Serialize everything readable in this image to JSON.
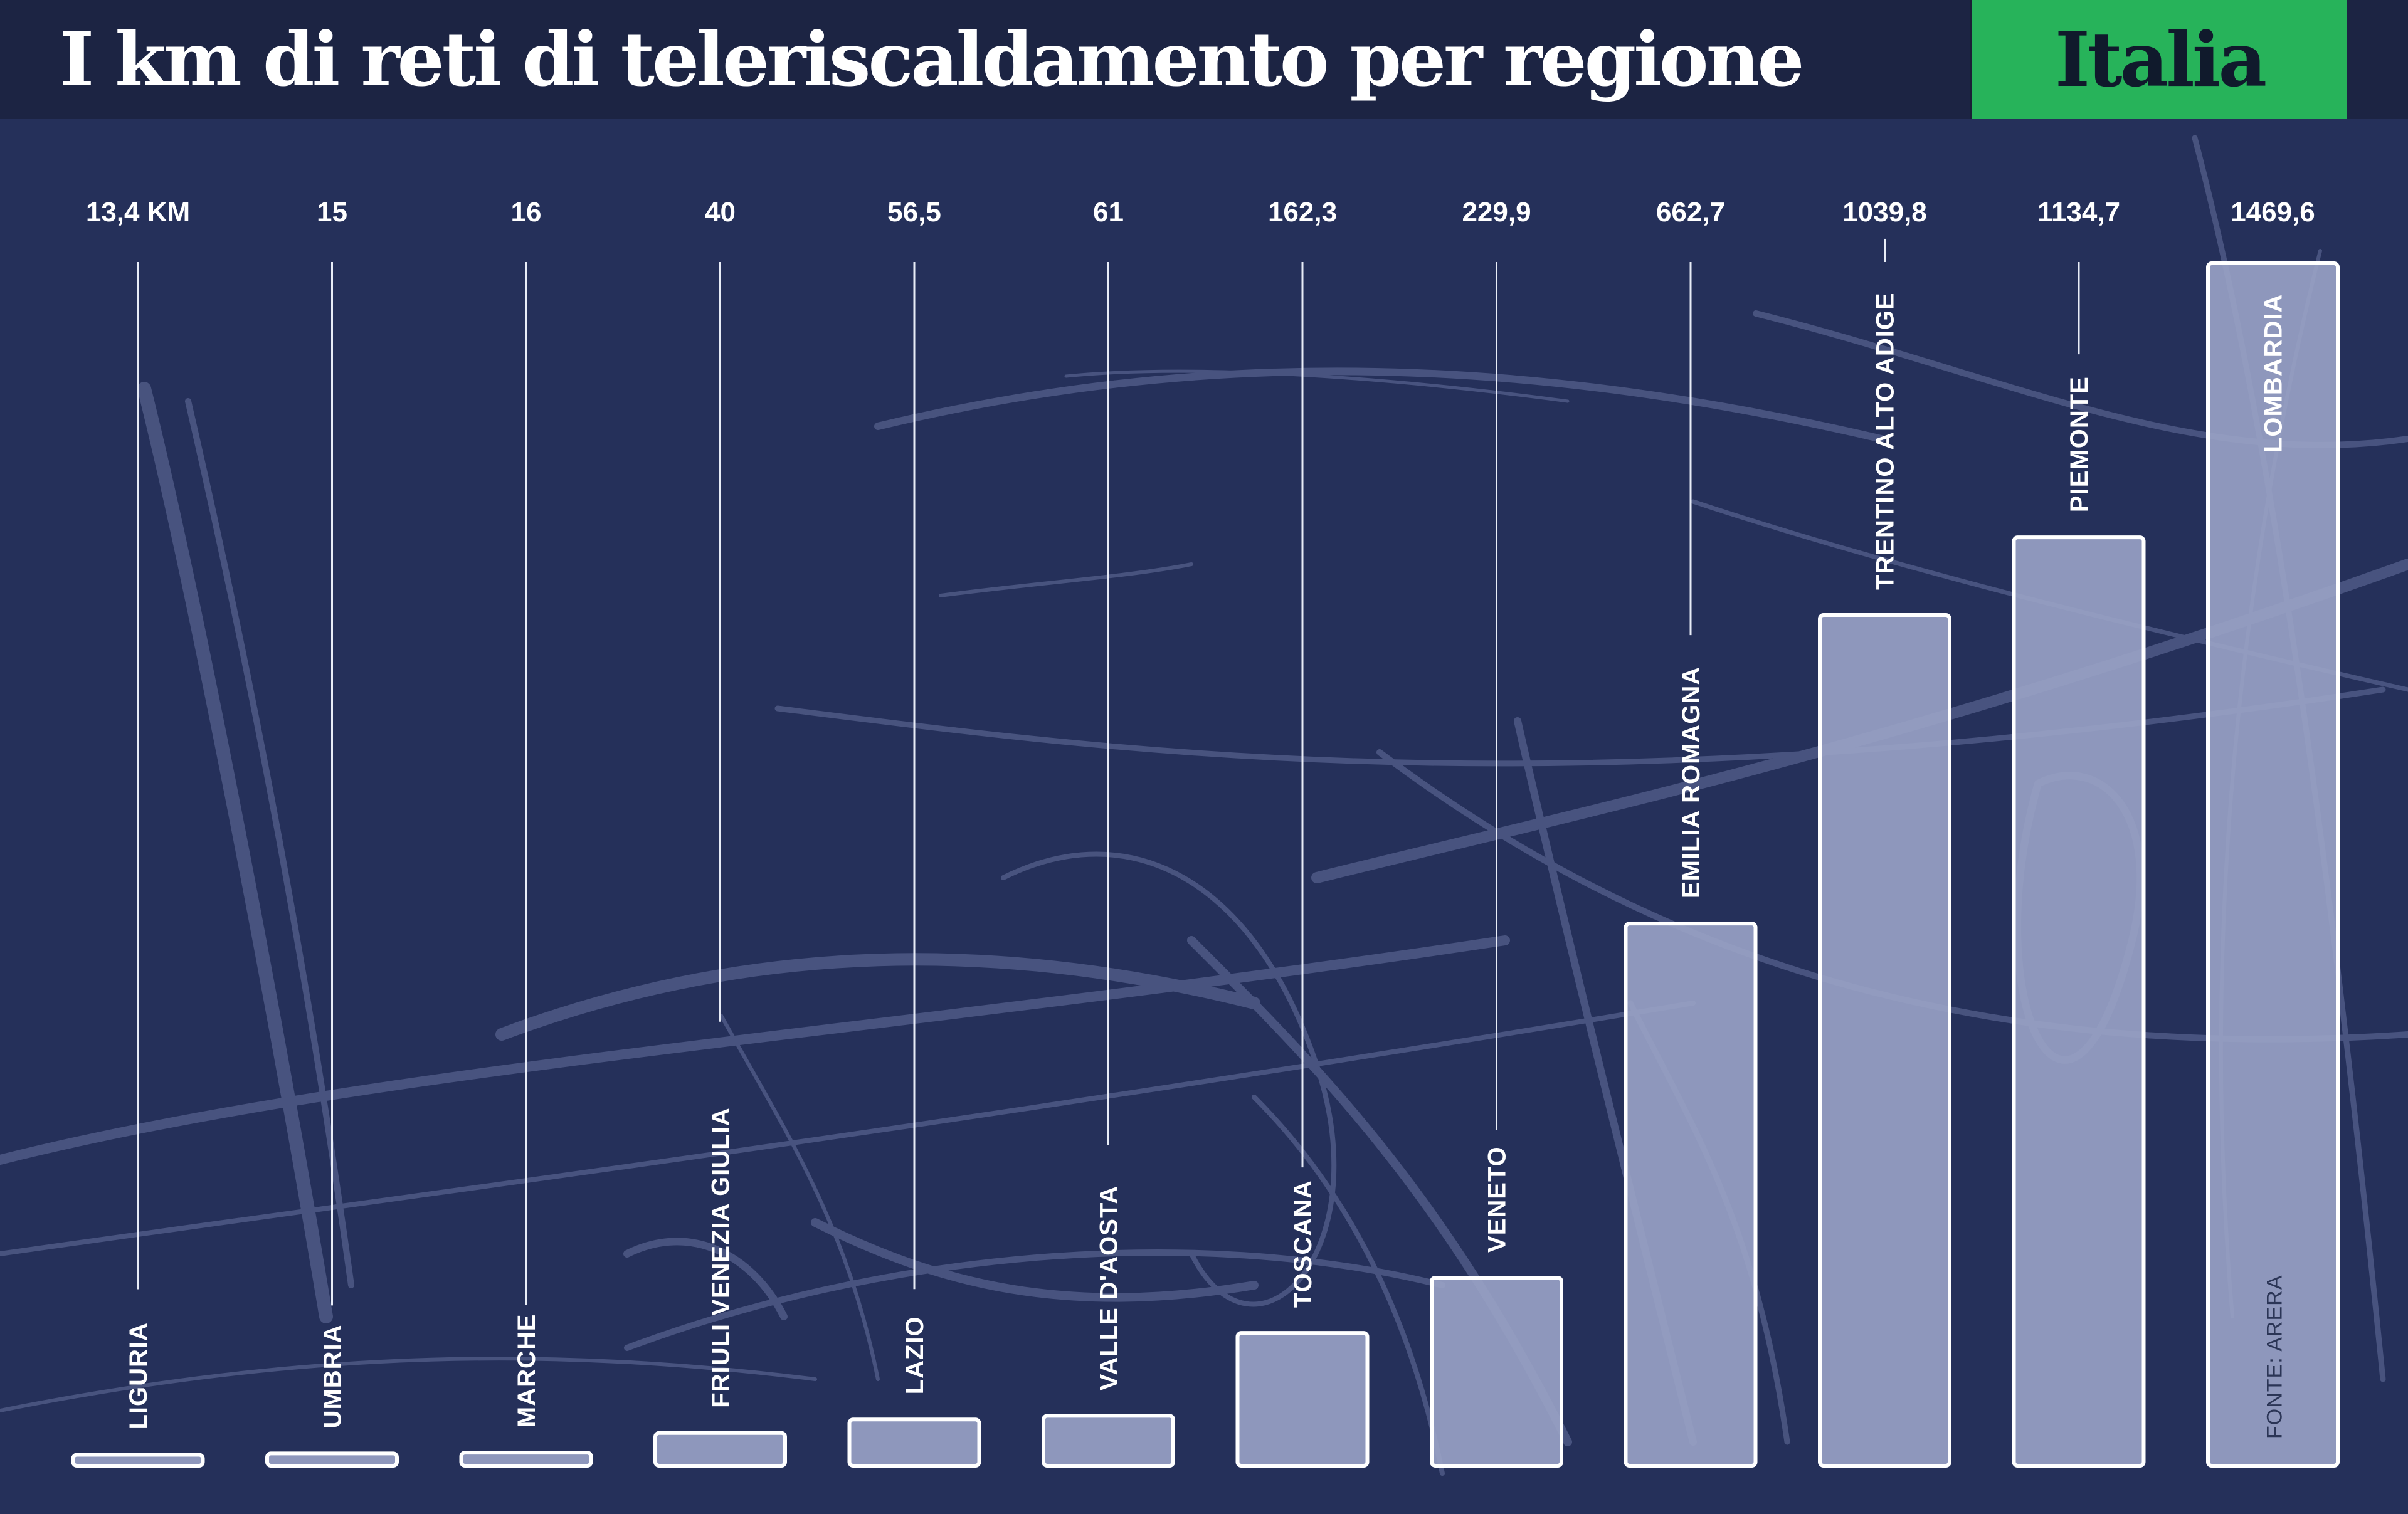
{
  "header": {
    "title": "I km di reti di teleriscaldamento per regione",
    "badge": "Italia"
  },
  "source": "FONTE: ARERA",
  "colors": {
    "background": "#25305a",
    "header": "#1c2443",
    "badge": "#27b35a",
    "bar_fill": "#9aa3c6",
    "bar_stroke": "#ffffff"
  },
  "chart_data": {
    "type": "bar",
    "title": "I km di reti di teleriscaldamento per regione",
    "unit": "km",
    "categories": [
      "LIGURIA",
      "UMBRIA",
      "MARCHE",
      "FRIULI VENEZIA GIULIA",
      "LAZIO",
      "VALLE D'AOSTA",
      "TOSCANA",
      "VENETO",
      "EMILIA ROMAGNA",
      "TRENTINO ALTO ADIGE",
      "PIEMONTE",
      "LOMBARDIA"
    ],
    "values": [
      13.4,
      15,
      16,
      40,
      56.5,
      61,
      162.3,
      229.9,
      662.7,
      1039.8,
      1134.7,
      1469.6
    ],
    "value_labels": [
      "13,4 KM",
      "15",
      "16",
      "40",
      "56,5",
      "61",
      "162,3",
      "229,9",
      "662,7",
      "1039,8",
      "1134,7",
      "1469,6"
    ],
    "xlabel": "",
    "ylabel": "",
    "ylim": [
      0,
      1469.6
    ]
  }
}
